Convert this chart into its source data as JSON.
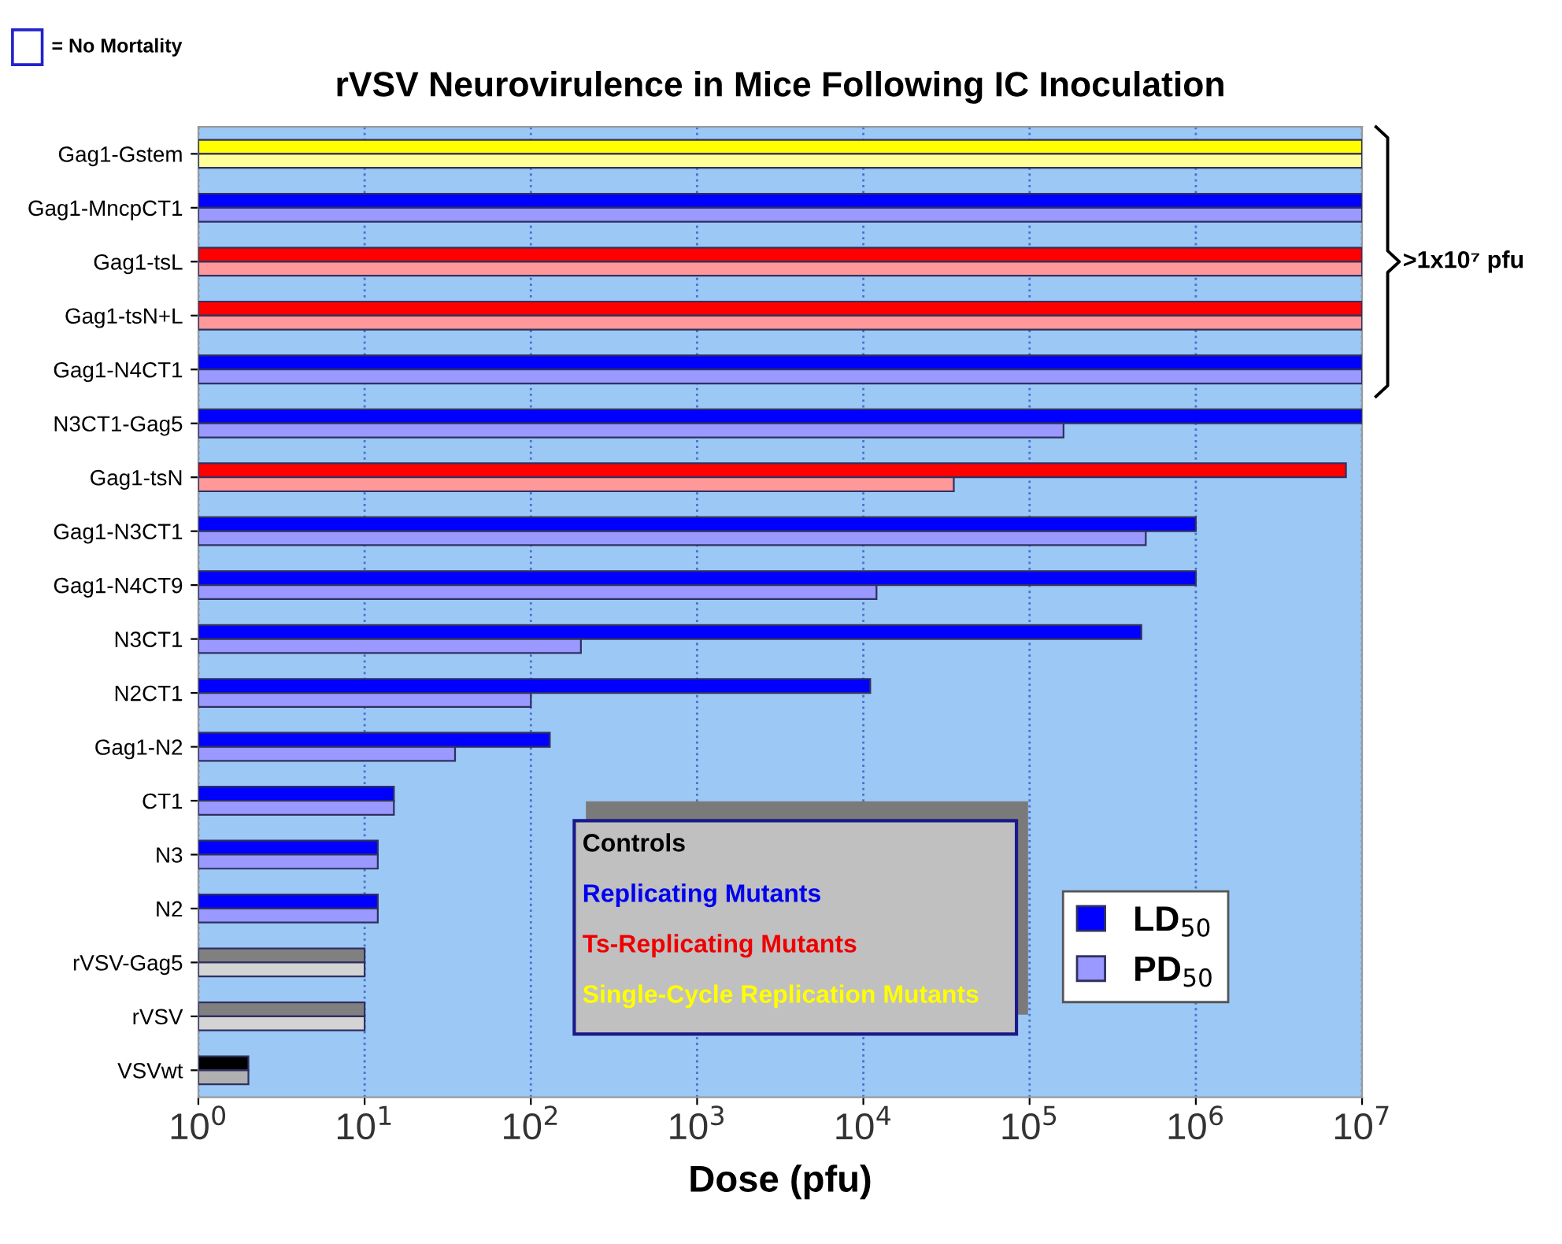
{
  "chart_data": {
    "type": "bar",
    "orientation": "horizontal",
    "title": "rVSV Neurovirulence in Mice Following IC Inoculation",
    "xlabel": "Dose (pfu)",
    "categories": [
      "Gag1-Gstem",
      "Gag1-MncpCT1",
      "Gag1-tsL",
      "Gag1-tsN+L",
      "Gag1-N4CT1",
      "N3CT1-Gag5",
      "Gag1-tsN",
      "Gag1-N3CT1",
      "Gag1-N4CT9",
      "N3CT1",
      "N2CT1",
      "Gag1-N2",
      "CT1",
      "N3",
      "N2",
      "rVSV-Gag5",
      "rVSV",
      "VSVwt"
    ],
    "series": [
      {
        "name": "LD$_{50}$",
        "color": "#0000ff",
        "colors": [
          "#ffff00",
          "#0000ff",
          "#ff0000",
          "#ff0000",
          "#0000ff",
          "#0000ff",
          "#ff0000",
          "#0000ff",
          "#0000ff",
          "#0000ff",
          "#0000ff",
          "#0000ff",
          "#0000ff",
          "#0000ff",
          "#0000ff",
          "#808080",
          "#808080",
          "#000000"
        ],
        "values": [
          10000000,
          10000000,
          10000000,
          10000000,
          10000000,
          10000000,
          8000000,
          1000000,
          1000000,
          470000,
          11000,
          130,
          15,
          12,
          12,
          10,
          10,
          2
        ]
      },
      {
        "name": "PD$_{50}$",
        "color": "#9999ff",
        "colors": [
          "#ffff99",
          "#9999ff",
          "#ff9999",
          "#ff9999",
          "#9999ff",
          "#9999ff",
          "#ff9999",
          "#9999ff",
          "#9999ff",
          "#9999ff",
          "#9999ff",
          "#9999ff",
          "#9999ff",
          "#9999ff",
          "#9999ff",
          "#d4d4d4",
          "#d4d4d4",
          "#b0b0b0"
        ],
        "values": [
          10000000,
          10000000,
          10000000,
          10000000,
          10000000,
          160000,
          35000,
          500000,
          12000,
          200,
          100,
          35,
          15,
          12,
          12,
          10,
          10,
          2
        ]
      }
    ],
    "log": "x",
    "xlim": [
      1,
      10000000
    ],
    "xticks": [
      {
        "value": 1,
        "label": "10$^{0}$"
      },
      {
        "value": 10,
        "label": "10$^{1}$"
      },
      {
        "value": 100,
        "label": "10$^{2}$"
      },
      {
        "value": 1000,
        "label": "10$^{3}$"
      },
      {
        "value": 10000,
        "label": "10$^{4}$"
      },
      {
        "value": 100000,
        "label": "10$^{5}$"
      },
      {
        "value": 1000000,
        "label": "10$^{6}$"
      },
      {
        "value": 10000000,
        "label": "10$^{7}$"
      }
    ],
    "grid": "x",
    "legend": "bottom right",
    "annotations": [
      "= No Mortality",
      ">1x10⁷ pfu",
      "Controls",
      "Replicating Mutants",
      "Ts-Replicating Mutants",
      "Single-Cycle Replication Mutants"
    ]
  }
}
